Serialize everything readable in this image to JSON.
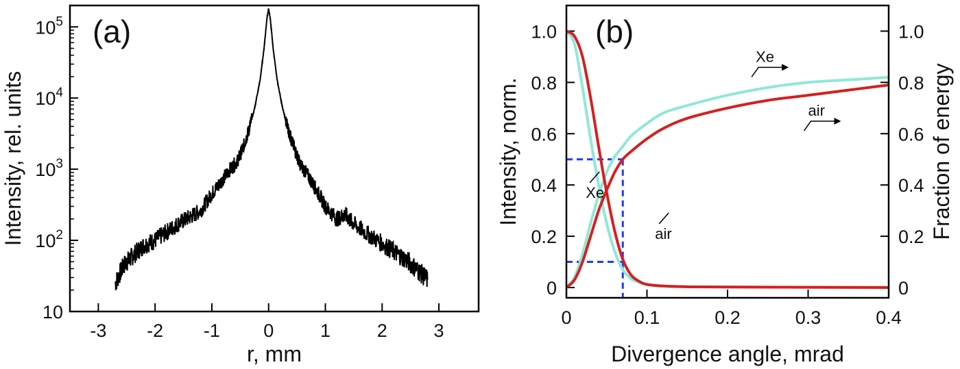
{
  "chart_data": [
    {
      "type": "line",
      "panel_label": "(a)",
      "xlabel": "r, mm",
      "ylabel": "Intensity, rel. units",
      "xlim": [
        -3.5,
        3.7
      ],
      "ylim": [
        10,
        200000
      ],
      "y_scale": "log",
      "x_ticks": [
        -3,
        -2,
        -1,
        0,
        1,
        2,
        3
      ],
      "x_tick_labels": [
        "-3",
        "-2",
        "-1",
        "0",
        "1",
        "2",
        "3"
      ],
      "y_ticks": [
        10,
        100,
        1000,
        10000,
        100000
      ],
      "y_tick_labels": [
        {
          "base": "10",
          "exp": ""
        },
        {
          "base": "10",
          "exp": "2"
        },
        {
          "base": "10",
          "exp": "3"
        },
        {
          "base": "10",
          "exp": "4"
        },
        {
          "base": "10",
          "exp": "5"
        }
      ],
      "series": [
        {
          "color": "#000000",
          "x": [
            -2.7,
            -2.55,
            -2.4,
            -2.2,
            -2.0,
            -1.8,
            -1.6,
            -1.4,
            -1.2,
            -1.0,
            -0.85,
            -0.7,
            -0.55,
            -0.45,
            -0.35,
            -0.25,
            -0.15,
            -0.08,
            -0.03,
            0.0,
            0.03,
            0.08,
            0.15,
            0.25,
            0.35,
            0.45,
            0.55,
            0.7,
            0.85,
            1.0,
            1.2,
            1.35,
            1.5,
            1.7,
            2.0,
            2.2,
            2.4,
            2.6,
            2.8
          ],
          "y": [
            25,
            45,
            60,
            85,
            100,
            130,
            170,
            210,
            260,
            450,
            650,
            950,
            1300,
            2000,
            3500,
            7000,
            18000,
            50000,
            130000,
            180000,
            130000,
            50000,
            18000,
            7000,
            3500,
            2000,
            1200,
            800,
            500,
            300,
            200,
            230,
            170,
            130,
            90,
            70,
            55,
            40,
            28
          ],
          "noise": true
        }
      ]
    },
    {
      "type": "line",
      "panel_label": "(b)",
      "xlabel": "Divergence angle, mrad",
      "ylabel": "Intensity, norm.",
      "ylabel_right": "Fraction of energy",
      "xlim": [
        0,
        0.4
      ],
      "ylim": [
        -0.04,
        1.1
      ],
      "y2lim": [
        -0.04,
        1.1
      ],
      "x_ticks": [
        0,
        0.1,
        0.2,
        0.3,
        0.4
      ],
      "x_tick_labels": [
        "0",
        "0.1",
        "0.2",
        "0.3",
        "0.4"
      ],
      "y_ticks": [
        0,
        0.2,
        0.4,
        0.6,
        0.8,
        1.0
      ],
      "y_tick_labels": [
        "0",
        "0.2",
        "0.4",
        "0.6",
        "0.8",
        "1.0"
      ],
      "y2_ticks": [
        0,
        0.2,
        0.4,
        0.6,
        0.8,
        1.0
      ],
      "y2_tick_labels": [
        "0",
        "0.2",
        "0.4",
        "0.6",
        "0.8",
        "1.0"
      ],
      "series": [
        {
          "name": "air",
          "axis": "left",
          "color": "#d42020",
          "x": [
            0,
            0.01,
            0.02,
            0.03,
            0.04,
            0.05,
            0.06,
            0.07,
            0.08,
            0.09,
            0.1,
            0.12,
            0.15,
            0.2,
            0.3,
            0.4
          ],
          "y": [
            1.0,
            0.98,
            0.9,
            0.74,
            0.55,
            0.37,
            0.22,
            0.11,
            0.05,
            0.025,
            0.012,
            0.006,
            0.003,
            0.002,
            0.001,
            0.0
          ]
        },
        {
          "name": "Xe",
          "axis": "left",
          "color": "#8fe8d6",
          "x": [
            0,
            0.01,
            0.02,
            0.03,
            0.04,
            0.05,
            0.06,
            0.07,
            0.08,
            0.09,
            0.1,
            0.12,
            0.15,
            0.2,
            0.3,
            0.4
          ],
          "y": [
            1.0,
            0.95,
            0.78,
            0.58,
            0.4,
            0.25,
            0.14,
            0.07,
            0.035,
            0.02,
            0.012,
            0.006,
            0.003,
            0.002,
            0.001,
            0.0
          ]
        },
        {
          "name": "air",
          "axis": "right",
          "color": "#d42020",
          "x": [
            0,
            0.01,
            0.02,
            0.03,
            0.04,
            0.05,
            0.06,
            0.07,
            0.08,
            0.1,
            0.12,
            0.15,
            0.2,
            0.25,
            0.3,
            0.35,
            0.4
          ],
          "y": [
            0.0,
            0.03,
            0.1,
            0.2,
            0.3,
            0.38,
            0.45,
            0.5,
            0.53,
            0.58,
            0.62,
            0.66,
            0.7,
            0.73,
            0.75,
            0.77,
            0.79
          ]
        },
        {
          "name": "Xe",
          "axis": "right",
          "color": "#8fe8d6",
          "x": [
            0,
            0.01,
            0.02,
            0.03,
            0.04,
            0.05,
            0.06,
            0.07,
            0.08,
            0.1,
            0.12,
            0.15,
            0.2,
            0.25,
            0.3,
            0.35,
            0.4
          ],
          "y": [
            0.0,
            0.04,
            0.13,
            0.25,
            0.36,
            0.45,
            0.51,
            0.55,
            0.59,
            0.64,
            0.68,
            0.71,
            0.75,
            0.78,
            0.8,
            0.81,
            0.82
          ]
        }
      ],
      "guides": {
        "color": "#1a3cff",
        "x_value": 0.07,
        "y_values": [
          0.5,
          0.1
        ]
      },
      "annotations": [
        {
          "text": "Xe",
          "x": 0.235,
          "y": 0.88,
          "arrow": true
        },
        {
          "text": "air",
          "x": 0.3,
          "y": 0.67,
          "arrow": true
        },
        {
          "text": "Xe",
          "x": 0.024,
          "y": 0.35
        },
        {
          "text": "air",
          "x": 0.11,
          "y": 0.19
        }
      ]
    }
  ]
}
